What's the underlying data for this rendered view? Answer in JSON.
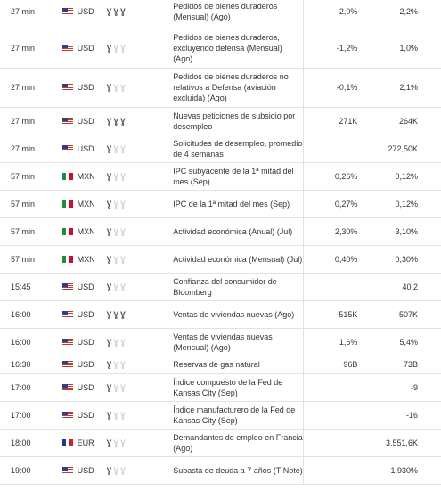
{
  "rows": [
    {
      "time": "27 min",
      "flag": "us",
      "currency": "USD",
      "importance": 3,
      "event": "Pedidos de bienes duraderos (Mensual) (Ago)",
      "actual": "-2,0%",
      "previous": "2,2%"
    },
    {
      "time": "27 min",
      "flag": "us",
      "currency": "USD",
      "importance": 1,
      "event": "Pedidos de bienes duraderos, excluyendo defensa (Mensual) (Ago)",
      "actual": "-1,2%",
      "previous": "1,0%"
    },
    {
      "time": "27 min",
      "flag": "us",
      "currency": "USD",
      "importance": 1,
      "event": "Pedidos de bienes duraderos no relativos a Defensa (aviación excluida) (Ago)",
      "actual": "-0,1%",
      "previous": "2,1%"
    },
    {
      "time": "27 min",
      "flag": "us",
      "currency": "USD",
      "importance": 3,
      "event": "Nuevas peticiones de subsidio por desempleo",
      "actual": "271K",
      "previous": "264K"
    },
    {
      "time": "27 min",
      "flag": "us",
      "currency": "USD",
      "importance": 1,
      "event": "Solicitudes de desempleo, promedio de 4 semanas",
      "actual": "",
      "previous": "272,50K"
    },
    {
      "time": "57 min",
      "flag": "mx",
      "currency": "MXN",
      "importance": 1,
      "event": "IPC subyacente de la 1ª mitad del mes (Sep)",
      "actual": "0,26%",
      "previous": "0,12%"
    },
    {
      "time": "57 min",
      "flag": "mx",
      "currency": "MXN",
      "importance": 1,
      "event": "IPC de la 1ª mitad del mes (Sep)",
      "actual": "0,27%",
      "previous": "0,12%"
    },
    {
      "time": "57 min",
      "flag": "mx",
      "currency": "MXN",
      "importance": 1,
      "event": "Actividad económica (Anual) (Jul)",
      "actual": "2,30%",
      "previous": "3,10%"
    },
    {
      "time": "57 min",
      "flag": "mx",
      "currency": "MXN",
      "importance": 1,
      "event": "Actividad económica (Mensual) (Jul)",
      "actual": "0,40%",
      "previous": "0,30%"
    },
    {
      "time": "15:45",
      "flag": "us",
      "currency": "USD",
      "importance": 1,
      "event": "Confianza del consumidor de Bloomberg",
      "actual": "",
      "previous": "40,2"
    },
    {
      "time": "16:00",
      "flag": "us",
      "currency": "USD",
      "importance": 3,
      "event": "Ventas de viviendas nuevas (Ago)",
      "actual": "515K",
      "previous": "507K"
    },
    {
      "time": "16:00",
      "flag": "us",
      "currency": "USD",
      "importance": 1,
      "event": "Ventas de viviendas nuevas (Mensual) (Ago)",
      "actual": "1,6%",
      "previous": "5,4%"
    },
    {
      "time": "16:30",
      "flag": "us",
      "currency": "USD",
      "importance": 1,
      "event": "Reservas de gas natural",
      "actual": "96B",
      "previous": "73B"
    },
    {
      "time": "17:00",
      "flag": "us",
      "currency": "USD",
      "importance": 1,
      "event": "Índice compuesto de la Fed de Kansas City (Sep)",
      "actual": "",
      "previous": "-9"
    },
    {
      "time": "17:00",
      "flag": "us",
      "currency": "USD",
      "importance": 1,
      "event": "Índice manufacturero de la Fed de Kansas City (Sep)",
      "actual": "",
      "previous": "-16"
    },
    {
      "time": "18:00",
      "flag": "fr",
      "currency": "EUR",
      "importance": 1,
      "event": "Demandantes de empleo en Francia (Ago)",
      "actual": "",
      "previous": "3.551,6K"
    },
    {
      "time": "19:00",
      "flag": "us",
      "currency": "USD",
      "importance": 1,
      "event": "Subasta de deuda a 7 años (T-Note)",
      "actual": "",
      "previous": "1,930%"
    }
  ]
}
